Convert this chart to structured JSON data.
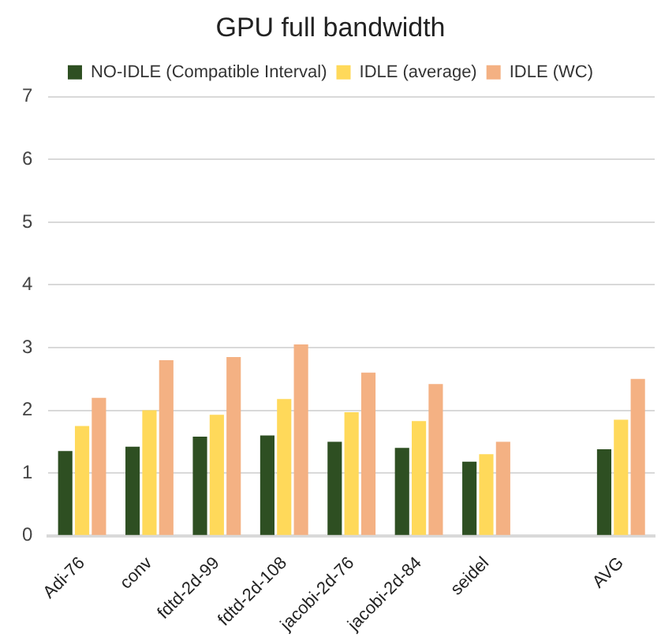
{
  "chart_data": {
    "type": "bar",
    "title": "GPU full bandwidth",
    "categories": [
      "Adi-76",
      "conv",
      "fdtd-2d-99",
      "fdtd-2d-108",
      "jacobi-2d-76",
      "jacobi-2d-84",
      "seidel",
      null,
      "AVG"
    ],
    "series": [
      {
        "name": "NO-IDLE (Compatible Interval)",
        "color": "#2e4f22",
        "values": [
          1.35,
          1.42,
          1.58,
          1.6,
          1.5,
          1.4,
          1.18,
          null,
          1.38
        ]
      },
      {
        "name": "IDLE (average)",
        "color": "#ffd95a",
        "values": [
          1.75,
          2.0,
          1.93,
          2.18,
          1.97,
          1.83,
          1.3,
          null,
          1.85
        ]
      },
      {
        "name": "IDLE (WC)",
        "color": "#f4b183",
        "values": [
          2.2,
          2.8,
          2.85,
          3.05,
          2.6,
          2.42,
          1.5,
          null,
          2.5
        ]
      }
    ],
    "ylim": [
      0,
      7
    ],
    "yticks": [
      0,
      1,
      2,
      3,
      4,
      5,
      6,
      7
    ],
    "grid": "y",
    "legend": "top"
  }
}
